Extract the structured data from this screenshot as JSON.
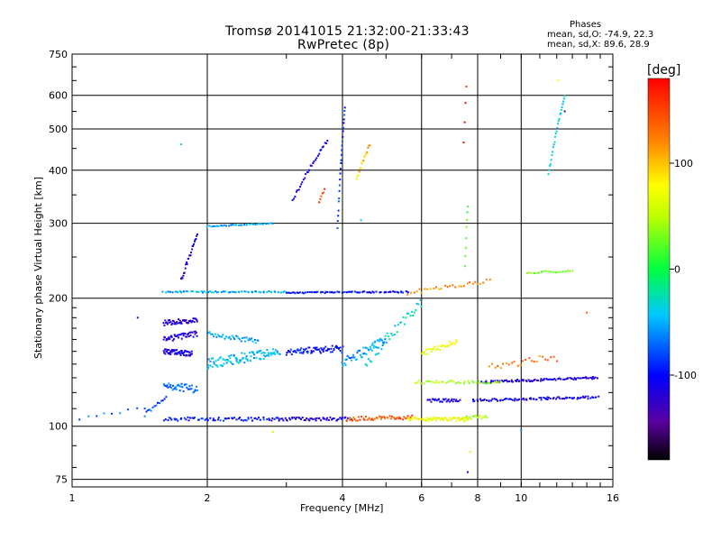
{
  "chart_data": {
    "type": "scatter",
    "title": "Tromsø 20141015 21:32:00-21:33:43",
    "subtitle": "RwPretec (8p)",
    "xlabel": "Frequency [MHz]",
    "ylabel": "Stationary phase Virtual Height [km]",
    "xscale": "log",
    "yscale": "log",
    "xlim": [
      1,
      16
    ],
    "ylim": [
      72,
      750
    ],
    "xticks": [
      1,
      2,
      4,
      6,
      8,
      10,
      16
    ],
    "yticks": [
      75,
      100,
      200,
      300,
      400,
      500,
      600,
      750
    ],
    "grid": true,
    "phases": {
      "title": "Phases",
      "o_line": "mean, sd,O: -74.9, 22.3",
      "x_line": "mean, sd,X:  89.6, 28.9"
    },
    "colorbar": {
      "label": "[deg]",
      "min": -180,
      "max": 180,
      "ticks": [
        100,
        0,
        -100
      ]
    },
    "traces": [
      {
        "x0": 1.0,
        "x1": 1.45,
        "h0": 104,
        "h1": 110,
        "phase": -70,
        "n": 10,
        "spread": 1.0
      },
      {
        "x0": 1.45,
        "x1": 1.62,
        "h0": 106,
        "h1": 118,
        "phase": -80,
        "n": 14,
        "spread": 1.5
      },
      {
        "x0": 1.6,
        "x1": 2.9,
        "h0": 104,
        "h1": 104,
        "phase": -95,
        "n": 70,
        "spread": 1.0
      },
      {
        "x0": 2.9,
        "x1": 4.2,
        "h0": 104,
        "h1": 104,
        "phase": -115,
        "n": 55,
        "spread": 1.0
      },
      {
        "x0": 4.1,
        "x1": 5.7,
        "h0": 104,
        "h1": 105,
        "phase": 140,
        "n": 50,
        "spread": 1.2
      },
      {
        "x0": 5.6,
        "x1": 7.6,
        "h0": 104,
        "h1": 104,
        "phase": 75,
        "n": 60,
        "spread": 1.0
      },
      {
        "x0": 7.4,
        "x1": 8.4,
        "h0": 104,
        "h1": 106,
        "phase": 50,
        "n": 18,
        "spread": 1.5
      },
      {
        "x0": 1.6,
        "x1": 1.9,
        "h0": 125,
        "h1": 122,
        "phase": -70,
        "n": 40,
        "spread": 2.5
      },
      {
        "x0": 1.6,
        "x1": 1.85,
        "h0": 150,
        "h1": 148,
        "phase": -115,
        "n": 55,
        "spread": 2.0
      },
      {
        "x0": 1.6,
        "x1": 1.9,
        "h0": 160,
        "h1": 165,
        "phase": -115,
        "n": 45,
        "spread": 2.5
      },
      {
        "x0": 1.6,
        "x1": 1.9,
        "h0": 175,
        "h1": 178,
        "phase": -120,
        "n": 45,
        "spread": 2.5
      },
      {
        "x0": 1.75,
        "x1": 1.9,
        "h0": 220,
        "h1": 280,
        "phase": -120,
        "n": 25,
        "spread": 3.0
      },
      {
        "x0": 1.6,
        "x1": 3.0,
        "h0": 207,
        "h1": 207,
        "phase": -50,
        "n": 70,
        "spread": 0.8
      },
      {
        "x0": 3.0,
        "x1": 5.6,
        "h0": 206,
        "h1": 207,
        "phase": -100,
        "n": 80,
        "spread": 0.8
      },
      {
        "x0": 5.6,
        "x1": 8.5,
        "h0": 206,
        "h1": 220,
        "phase": 120,
        "n": 30,
        "spread": 2.5
      },
      {
        "x0": 2.0,
        "x1": 2.8,
        "h0": 295,
        "h1": 300,
        "phase": -55,
        "n": 35,
        "spread": 0.8
      },
      {
        "x0": 2.0,
        "x1": 2.9,
        "h0": 140,
        "h1": 150,
        "phase": -45,
        "n": 100,
        "spread": 4.0
      },
      {
        "x0": 2.0,
        "x1": 2.6,
        "h0": 165,
        "h1": 158,
        "phase": -50,
        "n": 40,
        "spread": 2.0
      },
      {
        "x0": 3.0,
        "x1": 4.0,
        "h0": 150,
        "h1": 152,
        "phase": -100,
        "n": 70,
        "spread": 3.0
      },
      {
        "x0": 4.0,
        "x1": 5.0,
        "h0": 140,
        "h1": 160,
        "phase": -60,
        "n": 50,
        "spread": 4.0
      },
      {
        "x0": 4.5,
        "x1": 6.0,
        "h0": 140,
        "h1": 195,
        "phase": -30,
        "n": 40,
        "spread": 5.0
      },
      {
        "x0": 6.0,
        "x1": 7.2,
        "h0": 148,
        "h1": 158,
        "phase": 70,
        "n": 30,
        "spread": 2.0
      },
      {
        "x0": 6.2,
        "x1": 7.3,
        "h0": 115,
        "h1": 115,
        "phase": -115,
        "n": 30,
        "spread": 1.0
      },
      {
        "x0": 7.8,
        "x1": 14.8,
        "h0": 115,
        "h1": 117,
        "phase": -110,
        "n": 90,
        "spread": 0.8
      },
      {
        "x0": 8.2,
        "x1": 14.8,
        "h0": 127,
        "h1": 130,
        "phase": -115,
        "n": 90,
        "spread": 0.8
      },
      {
        "x0": 5.8,
        "x1": 9.0,
        "h0": 127,
        "h1": 127,
        "phase": 40,
        "n": 40,
        "spread": 1.0
      },
      {
        "x0": 8.5,
        "x1": 12.0,
        "h0": 138,
        "h1": 145,
        "phase": 130,
        "n": 25,
        "spread": 3.0
      },
      {
        "x0": 10.3,
        "x1": 13.0,
        "h0": 230,
        "h1": 232,
        "phase": 30,
        "n": 20,
        "spread": 1.5
      },
      {
        "x0": 11.5,
        "x1": 12.5,
        "h0": 390,
        "h1": 600,
        "phase": -40,
        "n": 25,
        "spread": 3.0
      },
      {
        "x0": 3.1,
        "x1": 3.7,
        "h0": 340,
        "h1": 470,
        "phase": -110,
        "n": 30,
        "spread": 3.0
      },
      {
        "x0": 3.9,
        "x1": 4.05,
        "h0": 290,
        "h1": 560,
        "phase": -90,
        "n": 25,
        "spread": 3.0
      },
      {
        "x0": 4.3,
        "x1": 4.6,
        "h0": 380,
        "h1": 460,
        "phase": 100,
        "n": 16,
        "spread": 3.0
      },
      {
        "x0": 3.55,
        "x1": 3.65,
        "h0": 338,
        "h1": 360,
        "phase": 150,
        "n": 6,
        "spread": 2.0
      },
      {
        "x0": 7.5,
        "x1": 7.6,
        "h0": 240,
        "h1": 330,
        "phase": 30,
        "n": 8,
        "spread": 3.0
      },
      {
        "x0": 7.45,
        "x1": 7.55,
        "h0": 465,
        "h1": 630,
        "phase": 170,
        "n": 4,
        "spread": 2.0
      }
    ],
    "outliers": [
      {
        "x": 1.75,
        "h": 460,
        "phase": -30
      },
      {
        "x": 4.4,
        "h": 305,
        "phase": -40
      },
      {
        "x": 2.8,
        "h": 97,
        "phase": 60
      },
      {
        "x": 7.6,
        "h": 78,
        "phase": -100
      },
      {
        "x": 7.7,
        "h": 87,
        "phase": 50
      },
      {
        "x": 10.0,
        "h": 98,
        "phase": -60
      },
      {
        "x": 12.5,
        "h": 550,
        "phase": -120
      },
      {
        "x": 12.1,
        "h": 650,
        "phase": 80
      },
      {
        "x": 14.0,
        "h": 185,
        "phase": 140
      },
      {
        "x": 1.4,
        "h": 180,
        "phase": -130
      }
    ]
  }
}
